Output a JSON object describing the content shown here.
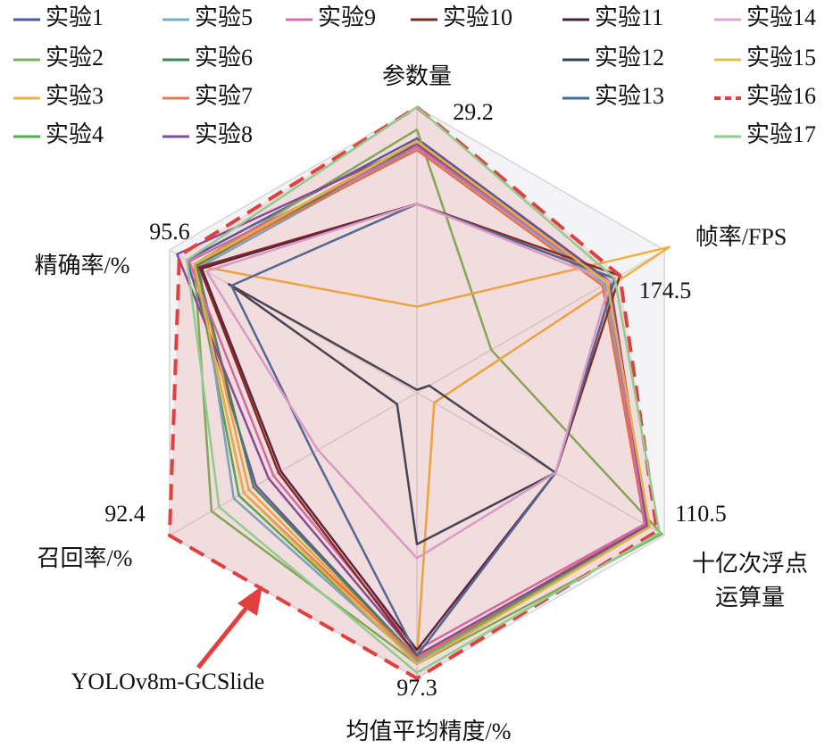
{
  "chart_data": {
    "type": "radar",
    "axes": [
      {
        "name": "参数量",
        "range": [
          0,
          29.2
        ]
      },
      {
        "name": "帧率/FPS",
        "range": [
          0,
          174.5
        ]
      },
      {
        "name": [
          "十亿次浮点",
          "运算量"
        ],
        "range": [
          0,
          110.5
        ]
      },
      {
        "name": "均值平均精度/%",
        "range": [
          0,
          97.3
        ]
      },
      {
        "name": "召回率/%",
        "range": [
          0,
          92.4
        ]
      },
      {
        "name": "精确率/%",
        "range": [
          0,
          95.6
        ]
      }
    ],
    "series": [
      {
        "name": "实验1",
        "color": "#4a5aa8",
        "values": [
          26.0,
          136.1,
          102.8,
          90.5,
          60.1,
          88.9
        ]
      },
      {
        "name": "实验2",
        "color": "#7ab55c",
        "values": [
          26.9,
          52.4,
          109.4,
          92.4,
          76.7,
          86.0
        ]
      },
      {
        "name": "实验3",
        "color": "#f0b040",
        "values": [
          8.8,
          178.0,
          7.7,
          90.5,
          62.8,
          85.1
        ]
      },
      {
        "name": "实验4",
        "color": "#4caf50",
        "values": [
          25.7,
          134.4,
          103.9,
          91.5,
          66.5,
          86.0
        ]
      },
      {
        "name": "实验5",
        "color": "#6fb0c8",
        "values": [
          25.1,
          132.6,
          101.7,
          91.5,
          68.4,
          84.1
        ]
      },
      {
        "name": "实验6",
        "color": "#3a8a5a",
        "values": [
          25.4,
          134.4,
          102.8,
          90.5,
          61.0,
          85.1
        ]
      },
      {
        "name": "实验7",
        "color": "#e9784f",
        "values": [
          24.8,
          130.9,
          101.7,
          90.5,
          64.7,
          86.0
        ]
      },
      {
        "name": "实验8",
        "color": "#7b4fa0",
        "values": [
          25.4,
          136.1,
          102.8,
          89.5,
          55.4,
          92.7
        ]
      },
      {
        "name": "实验9",
        "color": "#d070b0",
        "values": [
          25.1,
          134.4,
          101.7,
          87.6,
          53.6,
          88.0
        ]
      },
      {
        "name": "实验10",
        "color": "#7a2a20",
        "values": [
          19.3,
          143.1,
          61.9,
          89.5,
          51.7,
          84.1
        ]
      },
      {
        "name": "实验11",
        "color": "#4a2040",
        "values": [
          19.3,
          139.6,
          61.9,
          87.6,
          50.8,
          83.2
        ]
      },
      {
        "name": "实验12",
        "color": "#334455",
        "values": [
          0.3,
          8.7,
          61.9,
          51.6,
          7.4,
          72.7
        ]
      },
      {
        "name": "实验13",
        "color": "#3d6fa0",
        "values": [
          19.3,
          139.6,
          61.9,
          89.5,
          38.8,
          71.7
        ]
      },
      {
        "name": "实验14",
        "color": "#d8a8d8",
        "values": [
          19.3,
          136.1,
          61.9,
          56.4,
          37.0,
          81.3
        ]
      },
      {
        "name": "实验15",
        "color": "#e8c040",
        "values": [
          25.7,
          134.4,
          103.9,
          92.4,
          64.7,
          86.0
        ]
      },
      {
        "name": "实验16",
        "color": "#e04040",
        "dashed": true,
        "fill": true,
        "values": [
          29.2,
          143.1,
          107.2,
          97.3,
          92.4,
          91.8
        ]
      },
      {
        "name": "实验17",
        "color": "#90cc90",
        "values": [
          29.2,
          139.6,
          108.3,
          95.4,
          73.9,
          88.9
        ]
      }
    ],
    "annotation": "YOLOv8m-GCSlide"
  }
}
